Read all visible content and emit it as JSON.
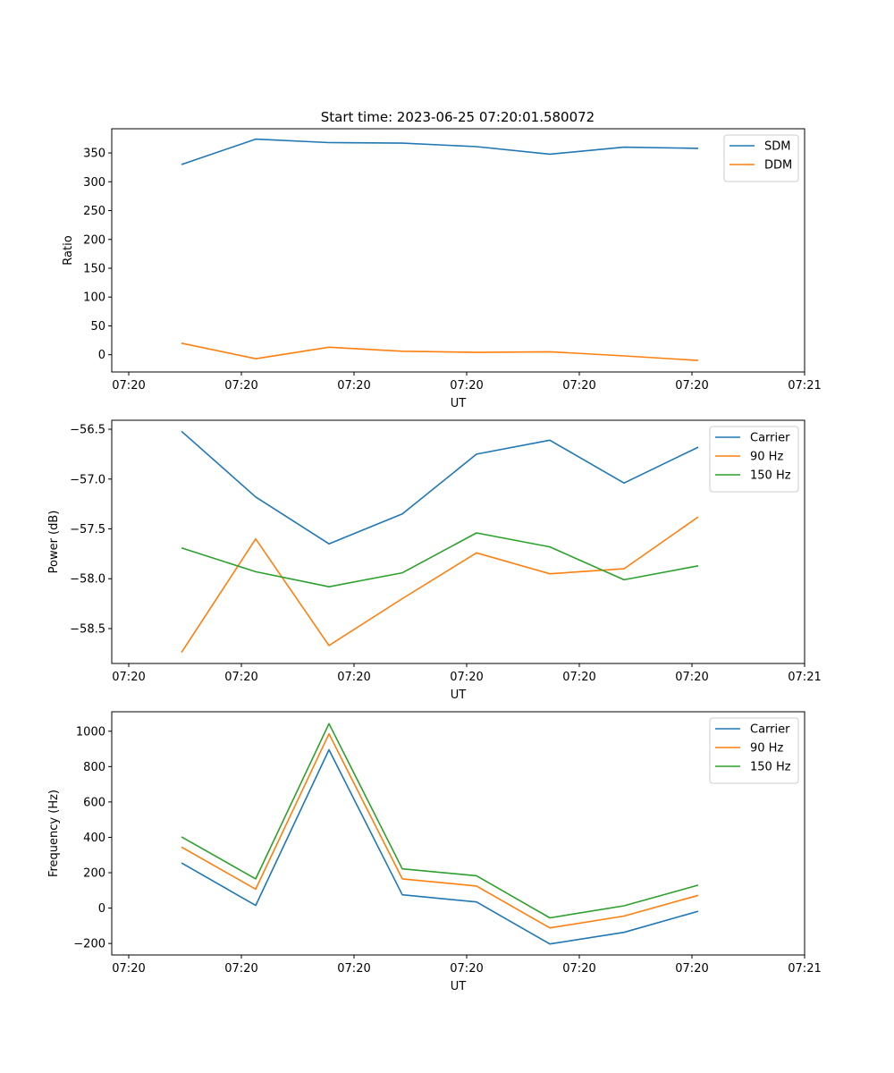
{
  "figure": {
    "title": "Start time: 2023-06-25 07:20:01.580072"
  },
  "colors": {
    "blue": "#1f77b4",
    "orange": "#ff7f0e",
    "green": "#2ca02c"
  },
  "chart_data": [
    {
      "type": "line",
      "title": "Start time: 2023-06-25 07:20:01.580072",
      "xlabel": "UT",
      "ylabel": "Ratio",
      "x_tick_labels": [
        "07:20",
        "07:20",
        "07:20",
        "07:20",
        "07:20",
        "07:20",
        "07:21"
      ],
      "y_ticks": [
        0,
        50,
        100,
        150,
        200,
        250,
        300,
        350
      ],
      "ylim": [
        -30,
        392
      ],
      "legend_position": "top-right",
      "series": [
        {
          "name": "SDM",
          "color": "#1f77b4",
          "values": [
            330,
            374,
            368,
            367,
            361,
            348,
            360,
            358
          ]
        },
        {
          "name": "DDM",
          "color": "#ff7f0e",
          "values": [
            20,
            -7,
            13,
            6,
            4,
            5,
            -2,
            -10
          ]
        }
      ]
    },
    {
      "type": "line",
      "xlabel": "UT",
      "ylabel": "Power (dB)",
      "x_tick_labels": [
        "07:20",
        "07:20",
        "07:20",
        "07:20",
        "07:20",
        "07:20",
        "07:21"
      ],
      "y_ticks": [
        -58.5,
        -58.0,
        -57.5,
        -57.0,
        -56.5
      ],
      "y_tick_labels": [
        "−58.5",
        "−58.0",
        "−57.5",
        "−57.0",
        "−56.5"
      ],
      "ylim": [
        -58.85,
        -56.41
      ],
      "legend_position": "top-right",
      "series": [
        {
          "name": "Carrier",
          "color": "#1f77b4",
          "values": [
            -56.52,
            -57.18,
            -57.65,
            -57.35,
            -56.75,
            -56.61,
            -57.04,
            -56.68
          ]
        },
        {
          "name": "90 Hz",
          "color": "#ff7f0e",
          "values": [
            -58.74,
            -57.6,
            -58.67,
            -58.2,
            -57.74,
            -57.95,
            -57.9,
            -57.38
          ]
        },
        {
          "name": "150 Hz",
          "color": "#2ca02c",
          "values": [
            -57.69,
            -57.93,
            -58.08,
            -57.94,
            -57.54,
            -57.68,
            -58.01,
            -57.87
          ]
        }
      ]
    },
    {
      "type": "line",
      "xlabel": "UT",
      "ylabel": "Frequency (Hz)",
      "x_tick_labels": [
        "07:20",
        "07:20",
        "07:20",
        "07:20",
        "07:20",
        "07:20",
        "07:21"
      ],
      "y_ticks": [
        -200,
        0,
        200,
        400,
        600,
        800,
        1000
      ],
      "y_tick_labels": [
        "−200",
        "0",
        "200",
        "400",
        "600",
        "800",
        "1000"
      ],
      "ylim": [
        -265,
        1110
      ],
      "legend_position": "top-right",
      "series": [
        {
          "name": "Carrier",
          "color": "#1f77b4",
          "values": [
            255,
            15,
            895,
            75,
            35,
            -203,
            -137,
            -18
          ]
        },
        {
          "name": "90 Hz",
          "color": "#ff7f0e",
          "values": [
            345,
            107,
            985,
            165,
            125,
            -112,
            -45,
            72
          ]
        },
        {
          "name": "150 Hz",
          "color": "#2ca02c",
          "values": [
            403,
            165,
            1043,
            222,
            183,
            -55,
            13,
            130
          ]
        }
      ]
    }
  ]
}
